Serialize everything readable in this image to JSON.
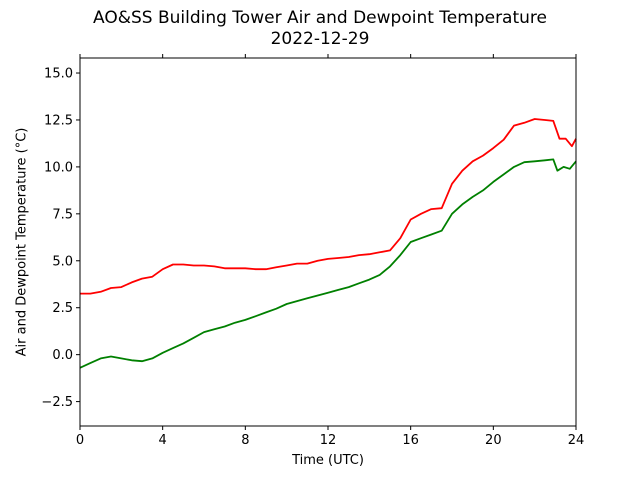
{
  "chart_data": {
    "type": "line",
    "title": "AO&SS Building Tower Air and Dewpoint Temperature",
    "subtitle": "2022-12-29",
    "xlabel": "Time (UTC)",
    "ylabel": "Air and Dewpoint Temperature (°C)",
    "xlim": [
      0,
      24
    ],
    "ylim": [
      -3.8,
      15.8
    ],
    "xticks": [
      0,
      4,
      8,
      12,
      16,
      20,
      24
    ],
    "xtick_labels": [
      "0",
      "4",
      "8",
      "12",
      "16",
      "20",
      "24"
    ],
    "yticks": [
      -2.5,
      0.0,
      2.5,
      5.0,
      7.5,
      10.0,
      12.5,
      15.0
    ],
    "ytick_labels": [
      "−2.5",
      "0.0",
      "2.5",
      "5.0",
      "7.5",
      "10.0",
      "12.5",
      "15.0"
    ],
    "grid": false,
    "legend": "none",
    "series": [
      {
        "color": "#ff0000",
        "x": [
          0,
          0.5,
          1.0,
          1.5,
          2.0,
          2.5,
          3.0,
          3.5,
          4.0,
          4.5,
          5.0,
          5.5,
          6.0,
          6.5,
          7.0,
          7.5,
          8.0,
          8.5,
          9.0,
          9.5,
          10.0,
          10.5,
          11.0,
          11.5,
          12.0,
          12.5,
          13.0,
          13.5,
          14.0,
          14.5,
          15.0,
          15.5,
          16.0,
          16.5,
          17.0,
          17.5,
          18.0,
          18.5,
          19.0,
          19.5,
          20.0,
          20.5,
          21.0,
          21.5,
          22.0,
          22.5,
          22.9,
          23.2,
          23.5,
          23.8,
          24.0
        ],
        "y": [
          3.25,
          3.25,
          3.35,
          3.55,
          3.6,
          3.85,
          4.05,
          4.15,
          4.55,
          4.8,
          4.8,
          4.75,
          4.75,
          4.7,
          4.6,
          4.6,
          4.6,
          4.55,
          4.55,
          4.65,
          4.75,
          4.85,
          4.85,
          5.0,
          5.1,
          5.15,
          5.2,
          5.3,
          5.35,
          5.45,
          5.55,
          6.2,
          7.2,
          7.5,
          7.75,
          7.8,
          9.1,
          9.8,
          10.3,
          10.6,
          11.0,
          11.45,
          12.2,
          12.35,
          12.55,
          12.5,
          12.45,
          11.5,
          11.5,
          11.1,
          11.5
        ]
      },
      {
        "color": "#008000",
        "x": [
          0,
          0.5,
          1.0,
          1.5,
          2.0,
          2.5,
          3.0,
          3.5,
          4.0,
          4.5,
          5.0,
          5.5,
          6.0,
          6.5,
          7.0,
          7.5,
          8.0,
          8.5,
          9.0,
          9.5,
          10.0,
          10.5,
          11.0,
          11.5,
          12.0,
          12.5,
          13.0,
          13.5,
          14.0,
          14.5,
          15.0,
          15.5,
          16.0,
          16.5,
          17.0,
          17.5,
          18.0,
          18.5,
          19.0,
          19.5,
          20.0,
          20.5,
          21.0,
          21.5,
          22.0,
          22.5,
          22.9,
          23.1,
          23.4,
          23.7,
          24.0
        ],
        "y": [
          -0.7,
          -0.45,
          -0.2,
          -0.1,
          -0.2,
          -0.3,
          -0.35,
          -0.2,
          0.1,
          0.35,
          0.6,
          0.9,
          1.2,
          1.35,
          1.5,
          1.7,
          1.85,
          2.05,
          2.25,
          2.45,
          2.7,
          2.85,
          3.0,
          3.15,
          3.3,
          3.45,
          3.6,
          3.8,
          4.0,
          4.25,
          4.7,
          5.3,
          6.0,
          6.2,
          6.4,
          6.6,
          7.5,
          8.0,
          8.4,
          8.75,
          9.2,
          9.6,
          10.0,
          10.25,
          10.3,
          10.35,
          10.4,
          9.8,
          10.0,
          9.9,
          10.3
        ]
      }
    ]
  }
}
